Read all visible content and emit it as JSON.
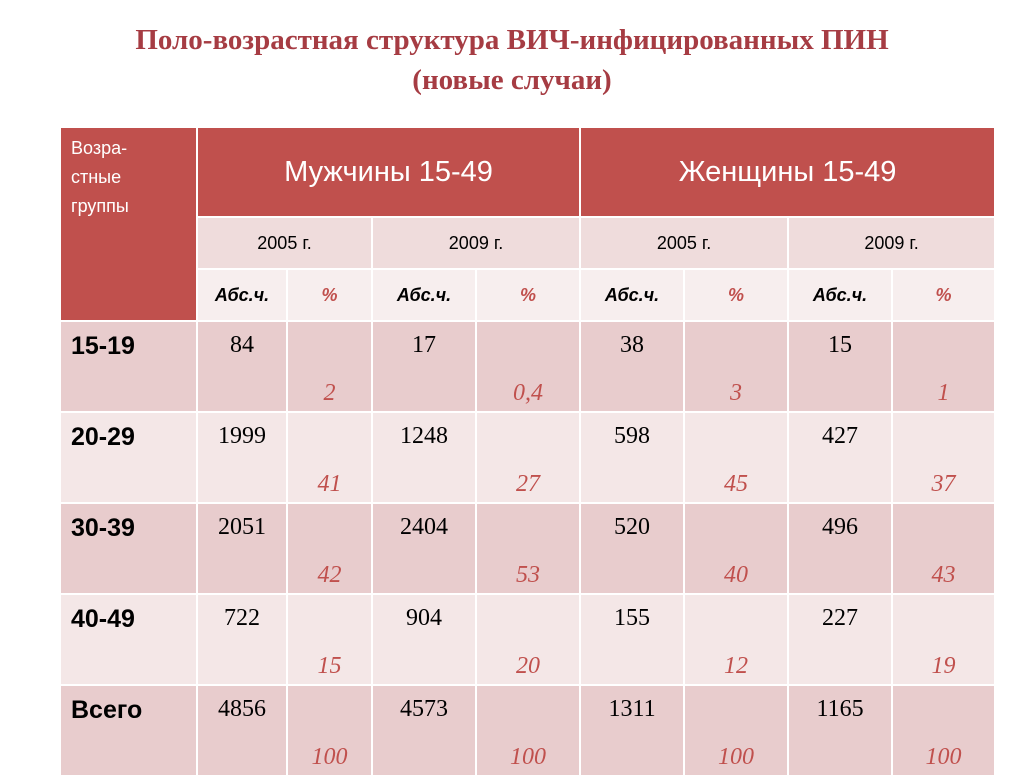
{
  "title": {
    "line1": "Поло-возрастная структура ВИЧ-инфицированных ПИН",
    "line2": "(новые случаи)"
  },
  "table": {
    "corner_label": [
      "Возра-",
      "стные",
      "группы"
    ],
    "groups": [
      "Мужчины 15-49",
      "Женщины 15-49"
    ],
    "years": [
      "2005 г.",
      "2009 г.",
      "2005 г.",
      "2009 г."
    ],
    "sub_headers": [
      "Абс.ч.",
      "%",
      "Абс.ч.",
      "%",
      "Абс.ч.",
      "%",
      "Абс.ч.",
      "%"
    ],
    "rows": [
      {
        "label": "15-19",
        "cells": [
          "84",
          "2",
          "17",
          "0,4",
          "38",
          "3",
          "15",
          "1"
        ]
      },
      {
        "label": "20-29",
        "cells": [
          "1999",
          "41",
          "1248",
          "27",
          "598",
          "45",
          "427",
          "37"
        ]
      },
      {
        "label": "30-39",
        "cells": [
          "2051",
          "42",
          "2404",
          "53",
          "520",
          "40",
          "496",
          "43"
        ]
      },
      {
        "label": "40-49",
        "cells": [
          "722",
          "15",
          "904",
          "20",
          "155",
          "12",
          "227",
          "19"
        ]
      },
      {
        "label": "Всего",
        "cells": [
          "4856",
          "100",
          "4573",
          "100",
          "1311",
          "100",
          "1165",
          "100"
        ]
      }
    ]
  }
}
